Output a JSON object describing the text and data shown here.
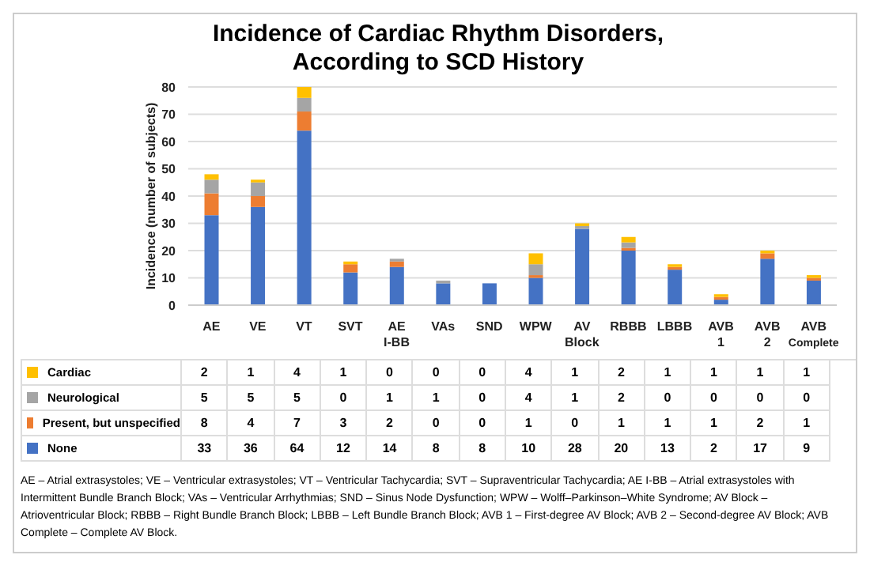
{
  "chart_data": {
    "type": "bar",
    "title": "Incidence of Cardiac Rhythm Disorders, According to SCD History",
    "ylabel": "Incidence (number of subjects)",
    "categories": [
      "AE",
      "VE",
      "VT",
      "SVT",
      "AE I-BB",
      "VAs",
      "SND",
      "WPW",
      "AV Block",
      "RBBB",
      "LBBB",
      "AVB 1",
      "AVB 2",
      "AVB Complete"
    ],
    "series": [
      {
        "name": "None",
        "color": "#4472c4",
        "values": [
          33,
          36,
          64,
          12,
          14,
          8,
          8,
          10,
          28,
          20,
          13,
          2,
          17,
          9
        ]
      },
      {
        "name": "Present, but unspecified",
        "color": "#ed7d31",
        "values": [
          8,
          4,
          7,
          3,
          2,
          0,
          0,
          1,
          0,
          1,
          1,
          1,
          2,
          1
        ]
      },
      {
        "name": "Neurological",
        "color": "#a5a5a5",
        "values": [
          5,
          5,
          5,
          0,
          1,
          1,
          0,
          4,
          1,
          2,
          0,
          0,
          0,
          0
        ]
      },
      {
        "name": "Cardiac",
        "color": "#ffc000",
        "values": [
          2,
          1,
          4,
          1,
          0,
          0,
          0,
          4,
          1,
          2,
          1,
          1,
          1,
          1
        ]
      }
    ],
    "stacked": true,
    "ylim": [
      0,
      80
    ],
    "yticks": [
      0,
      10,
      20,
      30,
      40,
      50,
      60,
      70,
      80
    ],
    "grid": "y",
    "legend": "bottom",
    "data_labels": true,
    "annotations": [
      "AE – Atrial extrasystoles; VE – Ventricular extrasystoles; VT – Ventricular Tachycardia; SVT – Supraventricular Tachycardia; AE I-BB – Atrial extrasystoles with Intermittent Bundle Branch Block; VAs – Ventricular Arrhythmias; SND – Sinus Node Dysfunction; WPW – Wolff–Parkinson–White Syndrome; AV Block – Atrioventricular Block; RBBB – Right Bundle Branch Block; LBBB – Left Bundle Branch Block; AVB 1 – First-degree AV Block; AVB 2 – Second-degree AV Block; AVB Complete – Complete AV Block."
    ]
  }
}
